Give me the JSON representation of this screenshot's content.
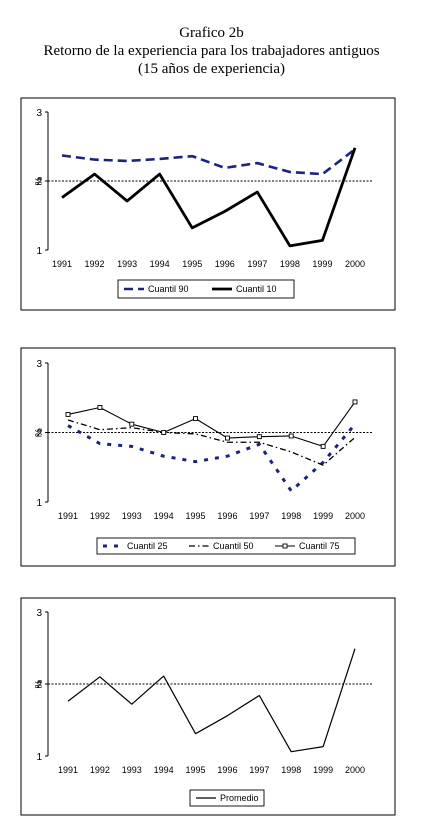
{
  "header": {
    "line1": "Grafico 2b",
    "line2": "Retorno de la experiencia para los trabajadores antiguos",
    "line3": "(15 años de experiencia)"
  },
  "chart_data": [
    {
      "type": "line",
      "x": [
        "1991",
        "1992",
        "1993",
        "1994",
        "1995",
        "1996",
        "1997",
        "1998",
        "1999",
        "2000"
      ],
      "ylabel": "%",
      "ylim": [
        1,
        3
      ],
      "yticks": [
        "1",
        "2",
        "3"
      ],
      "reference_line": 2,
      "legend_position": "bottom",
      "series": [
        {
          "name": "Cuantil 90",
          "style": "dashed",
          "color": "#1a237e",
          "values": [
            2.37,
            2.31,
            2.29,
            2.32,
            2.36,
            2.19,
            2.26,
            2.13,
            2.1,
            2.46
          ]
        },
        {
          "name": "Cuantil 10",
          "style": "solid-thick",
          "color": "#000000",
          "values": [
            1.76,
            2.1,
            1.71,
            2.1,
            1.32,
            1.56,
            1.84,
            1.06,
            1.14,
            2.48
          ]
        }
      ]
    },
    {
      "type": "line",
      "x": [
        "1991",
        "1992",
        "1993",
        "1994",
        "1995",
        "1996",
        "1997",
        "1998",
        "1999",
        "2000"
      ],
      "ylabel": "%",
      "ylim": [
        1,
        3
      ],
      "yticks": [
        "1",
        "2",
        "3"
      ],
      "reference_line": 2,
      "legend_position": "bottom",
      "series": [
        {
          "name": "Cuantil 25",
          "style": "dotted-thick",
          "color": "#1a237e",
          "values": [
            2.1,
            1.84,
            1.8,
            1.66,
            1.58,
            1.66,
            1.83,
            1.16,
            1.57,
            2.12
          ]
        },
        {
          "name": "Cuantil 50",
          "style": "dash-dot",
          "color": "#000000",
          "values": [
            2.18,
            2.04,
            2.07,
            2.0,
            1.98,
            1.86,
            1.86,
            1.72,
            1.53,
            1.93
          ]
        },
        {
          "name": "Cuantil 75",
          "style": "solid-square",
          "color": "#000000",
          "values": [
            2.26,
            2.36,
            2.12,
            2.0,
            2.2,
            1.92,
            1.94,
            1.95,
            1.8,
            2.44
          ]
        }
      ]
    },
    {
      "type": "line",
      "x": [
        "1991",
        "1992",
        "1993",
        "1994",
        "1995",
        "1996",
        "1997",
        "1998",
        "1999",
        "2000"
      ],
      "ylabel": "%",
      "ylim": [
        1,
        3
      ],
      "yticks": [
        "1",
        "2",
        "3"
      ],
      "reference_line": 2,
      "legend_position": "bottom",
      "series": [
        {
          "name": "Promedio",
          "style": "solid",
          "color": "#000000",
          "values": [
            1.76,
            2.1,
            1.72,
            2.11,
            1.31,
            1.56,
            1.84,
            1.06,
            1.13,
            2.49
          ]
        }
      ]
    }
  ]
}
